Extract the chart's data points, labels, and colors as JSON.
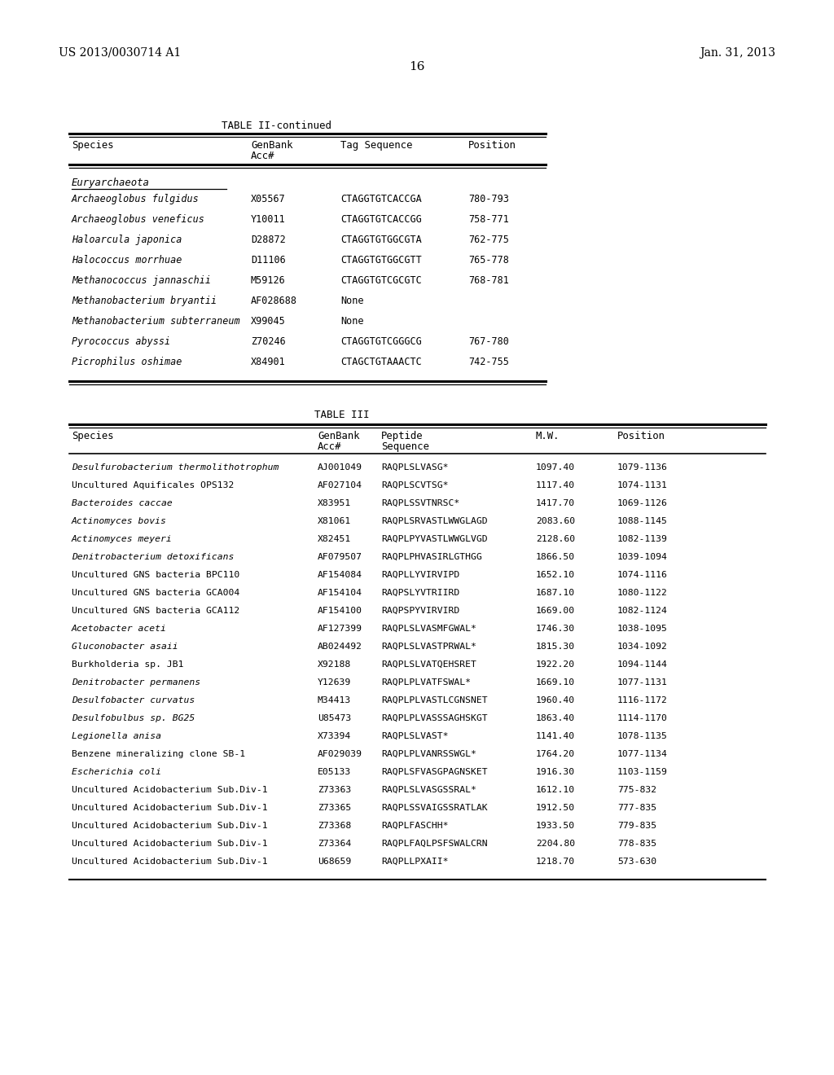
{
  "header_left": "US 2013/0030714 A1",
  "header_right": "Jan. 31, 2013",
  "page_number": "16",
  "table2_title": "TABLE II-continued",
  "table2_section": "Euryarchaeota",
  "table2_rows": [
    [
      "Archaeoglobus fulgidus",
      "X05567",
      "CTAGGTGTCACCGA",
      "780-793"
    ],
    [
      "Archaeoglobus veneficus",
      "Y10011",
      "CTAGGTGTCACCGG",
      "758-771"
    ],
    [
      "Haloarcula japonica",
      "D28872",
      "CTAGGTGTGGCGTA",
      "762-775"
    ],
    [
      "Halococcus morrhuae",
      "D11106",
      "CTAGGTGTGGCGTT",
      "765-778"
    ],
    [
      "Methanococcus jannaschii",
      "M59126",
      "CTAGGTGTCGCGTC",
      "768-781"
    ],
    [
      "Methanobacterium bryantii",
      "AF028688",
      "None",
      ""
    ],
    [
      "Methanobacterium subterraneum",
      "X99045",
      "None",
      ""
    ],
    [
      "Pyrococcus abyssi",
      "Z70246",
      "CTAGGTGTCGGGCG",
      "767-780"
    ],
    [
      "Picrophilus oshimae",
      "X84901",
      "CTAGCTGTAAACTC",
      "742-755"
    ]
  ],
  "table3_title": "TABLE III",
  "table3_rows": [
    [
      "Desulfurobacterium thermolithotrophum",
      "AJ001049",
      "RAQPLSLVASG*",
      "1097.40",
      "1079-1136",
      true
    ],
    [
      "Uncultured Aquificales OPS132",
      "AF027104",
      "RAQPLSCVTSG*",
      "1117.40",
      "1074-1131",
      false
    ],
    [
      "Bacteroides caccae",
      "X83951",
      "RAQPLSSVTNRSC*",
      "1417.70",
      "1069-1126",
      true
    ],
    [
      "Actinomyces bovis",
      "X81061",
      "RAQPLSRVASTLWWGLAGD",
      "2083.60",
      "1088-1145",
      true
    ],
    [
      "Actinomyces meyeri",
      "X82451",
      "RAQPLPYVASTLWWGLVGD",
      "2128.60",
      "1082-1139",
      true
    ],
    [
      "Denitrobacterium detoxificans",
      "AF079507",
      "RAQPLPHVASIRLGTHGG",
      "1866.50",
      "1039-1094",
      true
    ],
    [
      "Uncultured GNS bacteria BPC110",
      "AF154084",
      "RAQPLLYVIRVIPD",
      "1652.10",
      "1074-1116",
      false
    ],
    [
      "Uncultured GNS bacteria GCA004",
      "AF154104",
      "RAQPSLYVTRIIRD",
      "1687.10",
      "1080-1122",
      false
    ],
    [
      "Uncultured GNS bacteria GCA112",
      "AF154100",
      "RAQPSPYVIRVIRD",
      "1669.00",
      "1082-1124",
      false
    ],
    [
      "Acetobacter aceti",
      "AF127399",
      "RAQPLSLVASMFGWAL*",
      "1746.30",
      "1038-1095",
      true
    ],
    [
      "Gluconobacter asaii",
      "AB024492",
      "RAQPLSLVASTPRWAL*",
      "1815.30",
      "1034-1092",
      true
    ],
    [
      "Burkholderia sp. JB1",
      "X92188",
      "RAQPLSLVATQEHSRET",
      "1922.20",
      "1094-1144",
      false
    ],
    [
      "Denitrobacter permanens",
      "Y12639",
      "RAQPLPLVATFSWAL*",
      "1669.10",
      "1077-1131",
      true
    ],
    [
      "Desulfobacter curvatus",
      "M34413",
      "RAQPLPLVASTLCGNSNET",
      "1960.40",
      "1116-1172",
      true
    ],
    [
      "Desulfobulbus sp. BG25",
      "U85473",
      "RAQPLPLVASSSAGHSKGT",
      "1863.40",
      "1114-1170",
      true
    ],
    [
      "Legionella anisa",
      "X73394",
      "RAQPLSLVAST*",
      "1141.40",
      "1078-1135",
      true
    ],
    [
      "Benzene mineralizing clone SB-1",
      "AF029039",
      "RAQPLPLVANRSSWGL*",
      "1764.20",
      "1077-1134",
      false
    ],
    [
      "Escherichia coli",
      "E05133",
      "RAQPLSFVASGPAGNSKET",
      "1916.30",
      "1103-1159",
      true
    ],
    [
      "Uncultured Acidobacterium Sub.Div-1",
      "Z73363",
      "RAQPLSLVASGSSRAL*",
      "1612.10",
      "775-832",
      false
    ],
    [
      "Uncultured Acidobacterium Sub.Div-1",
      "Z73365",
      "RAQPLSSVAIGSSRATLAK",
      "1912.50",
      "777-835",
      false
    ],
    [
      "Uncultured Acidobacterium Sub.Div-1",
      "Z73368",
      "RAQPLFASCHH*",
      "1933.50",
      "779-835",
      false
    ],
    [
      "Uncultured Acidobacterium Sub.Div-1",
      "Z73364",
      "RAQPLFAQLPSFSWALCRN",
      "2204.80",
      "778-835",
      false
    ],
    [
      "Uncultured Acidobacterium Sub.Div-1",
      "U68659",
      "RAQPLLPXAII*",
      "1218.70",
      "573-630",
      false
    ]
  ],
  "bg_color": "#ffffff",
  "text_color": "#000000"
}
